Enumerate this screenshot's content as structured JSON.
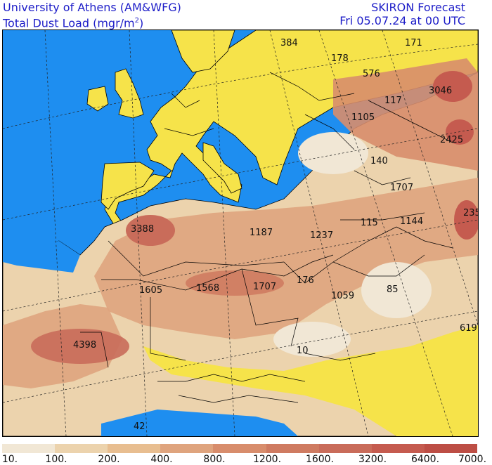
{
  "header": {
    "line1": "University of Athens (AM&WFG)",
    "line2_prefix": "Total Dust Load (mgr/m",
    "line2_sup": "2",
    "line2_suffix": ")",
    "forecast_line1": "SKIRON Forecast",
    "forecast_line2": "Fri 05.07.24 at 00 UTC"
  },
  "colors": {
    "sea": "#1e8ef0",
    "land_low": "#f6e34a",
    "border": "#000000"
  },
  "colorbar": {
    "colors": [
      "#f1e7d5",
      "#ecd3ad",
      "#e8be90",
      "#dfa47e",
      "#d88d6c",
      "#cf7b61",
      "#c96c5a",
      "#c55b4f",
      "#bd4e45"
    ],
    "labels": [
      "10.",
      "100.",
      "200.",
      "400.",
      "800.",
      "1200.",
      "1600.",
      "3200.",
      "6400.",
      "7000."
    ]
  },
  "map_labels": [
    "384",
    "178",
    "171",
    "576",
    "3046",
    "117",
    "1105",
    "2425",
    "140",
    "1707",
    "235",
    "3388",
    "1187",
    "1237",
    "115",
    "1144",
    "1605",
    "1568",
    "1707",
    "176",
    "1059",
    "85",
    "4398",
    "619",
    "10",
    "42"
  ]
}
